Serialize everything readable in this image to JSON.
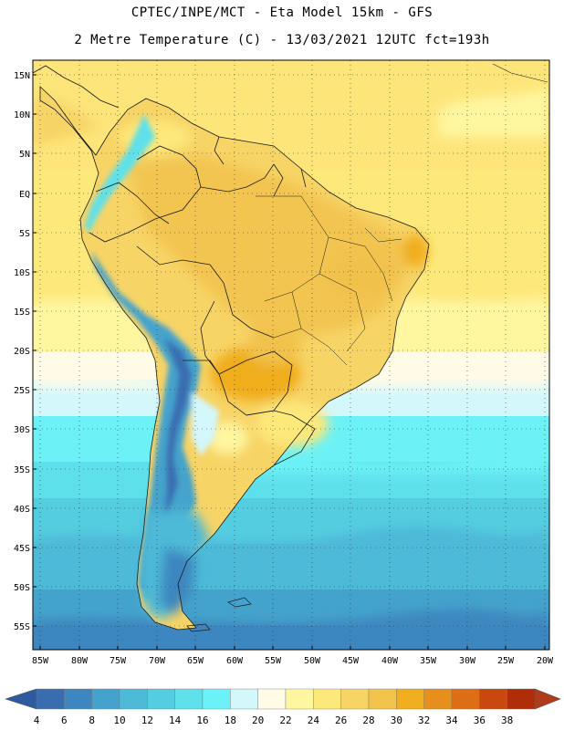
{
  "header": {
    "line1": "CPTEC/INPE/MCT -  Eta Model 15km - GFS",
    "line2": "2 Metre Temperature (C) - 13/03/2021 12UTC fct=193h"
  },
  "map": {
    "lat_labels": [
      "15N",
      "10N",
      "5N",
      "EQ",
      "5S",
      "10S",
      "15S",
      "20S",
      "25S",
      "30S",
      "35S",
      "40S",
      "45S",
      "50S",
      "55S"
    ],
    "lon_labels": [
      "85W",
      "80W",
      "75W",
      "70W",
      "65W",
      "60W",
      "55W",
      "50W",
      "45W",
      "40W",
      "35W",
      "30W",
      "25W",
      "20W"
    ],
    "extent": {
      "lon": [
        -86,
        -19
      ],
      "lat": [
        -58,
        16
      ]
    }
  },
  "colorbar": {
    "labels": [
      "4",
      "6",
      "8",
      "10",
      "12",
      "14",
      "16",
      "18",
      "20",
      "22",
      "24",
      "26",
      "28",
      "30",
      "32",
      "34",
      "36",
      "38"
    ],
    "colors": [
      "#3a6db0",
      "#3d86bf",
      "#44a3cc",
      "#4dbad8",
      "#55cde0",
      "#5ee0ea",
      "#6cf2f6",
      "#d3f7fb",
      "#fffbe6",
      "#fff6a0",
      "#fde87a",
      "#f7d466",
      "#f1c24c",
      "#f0ad1e",
      "#e68f1c",
      "#dd6e16",
      "#c9480e",
      "#ae2e0a"
    ],
    "under_color": "#2d5aa0",
    "over_color": "#b03a1a"
  }
}
